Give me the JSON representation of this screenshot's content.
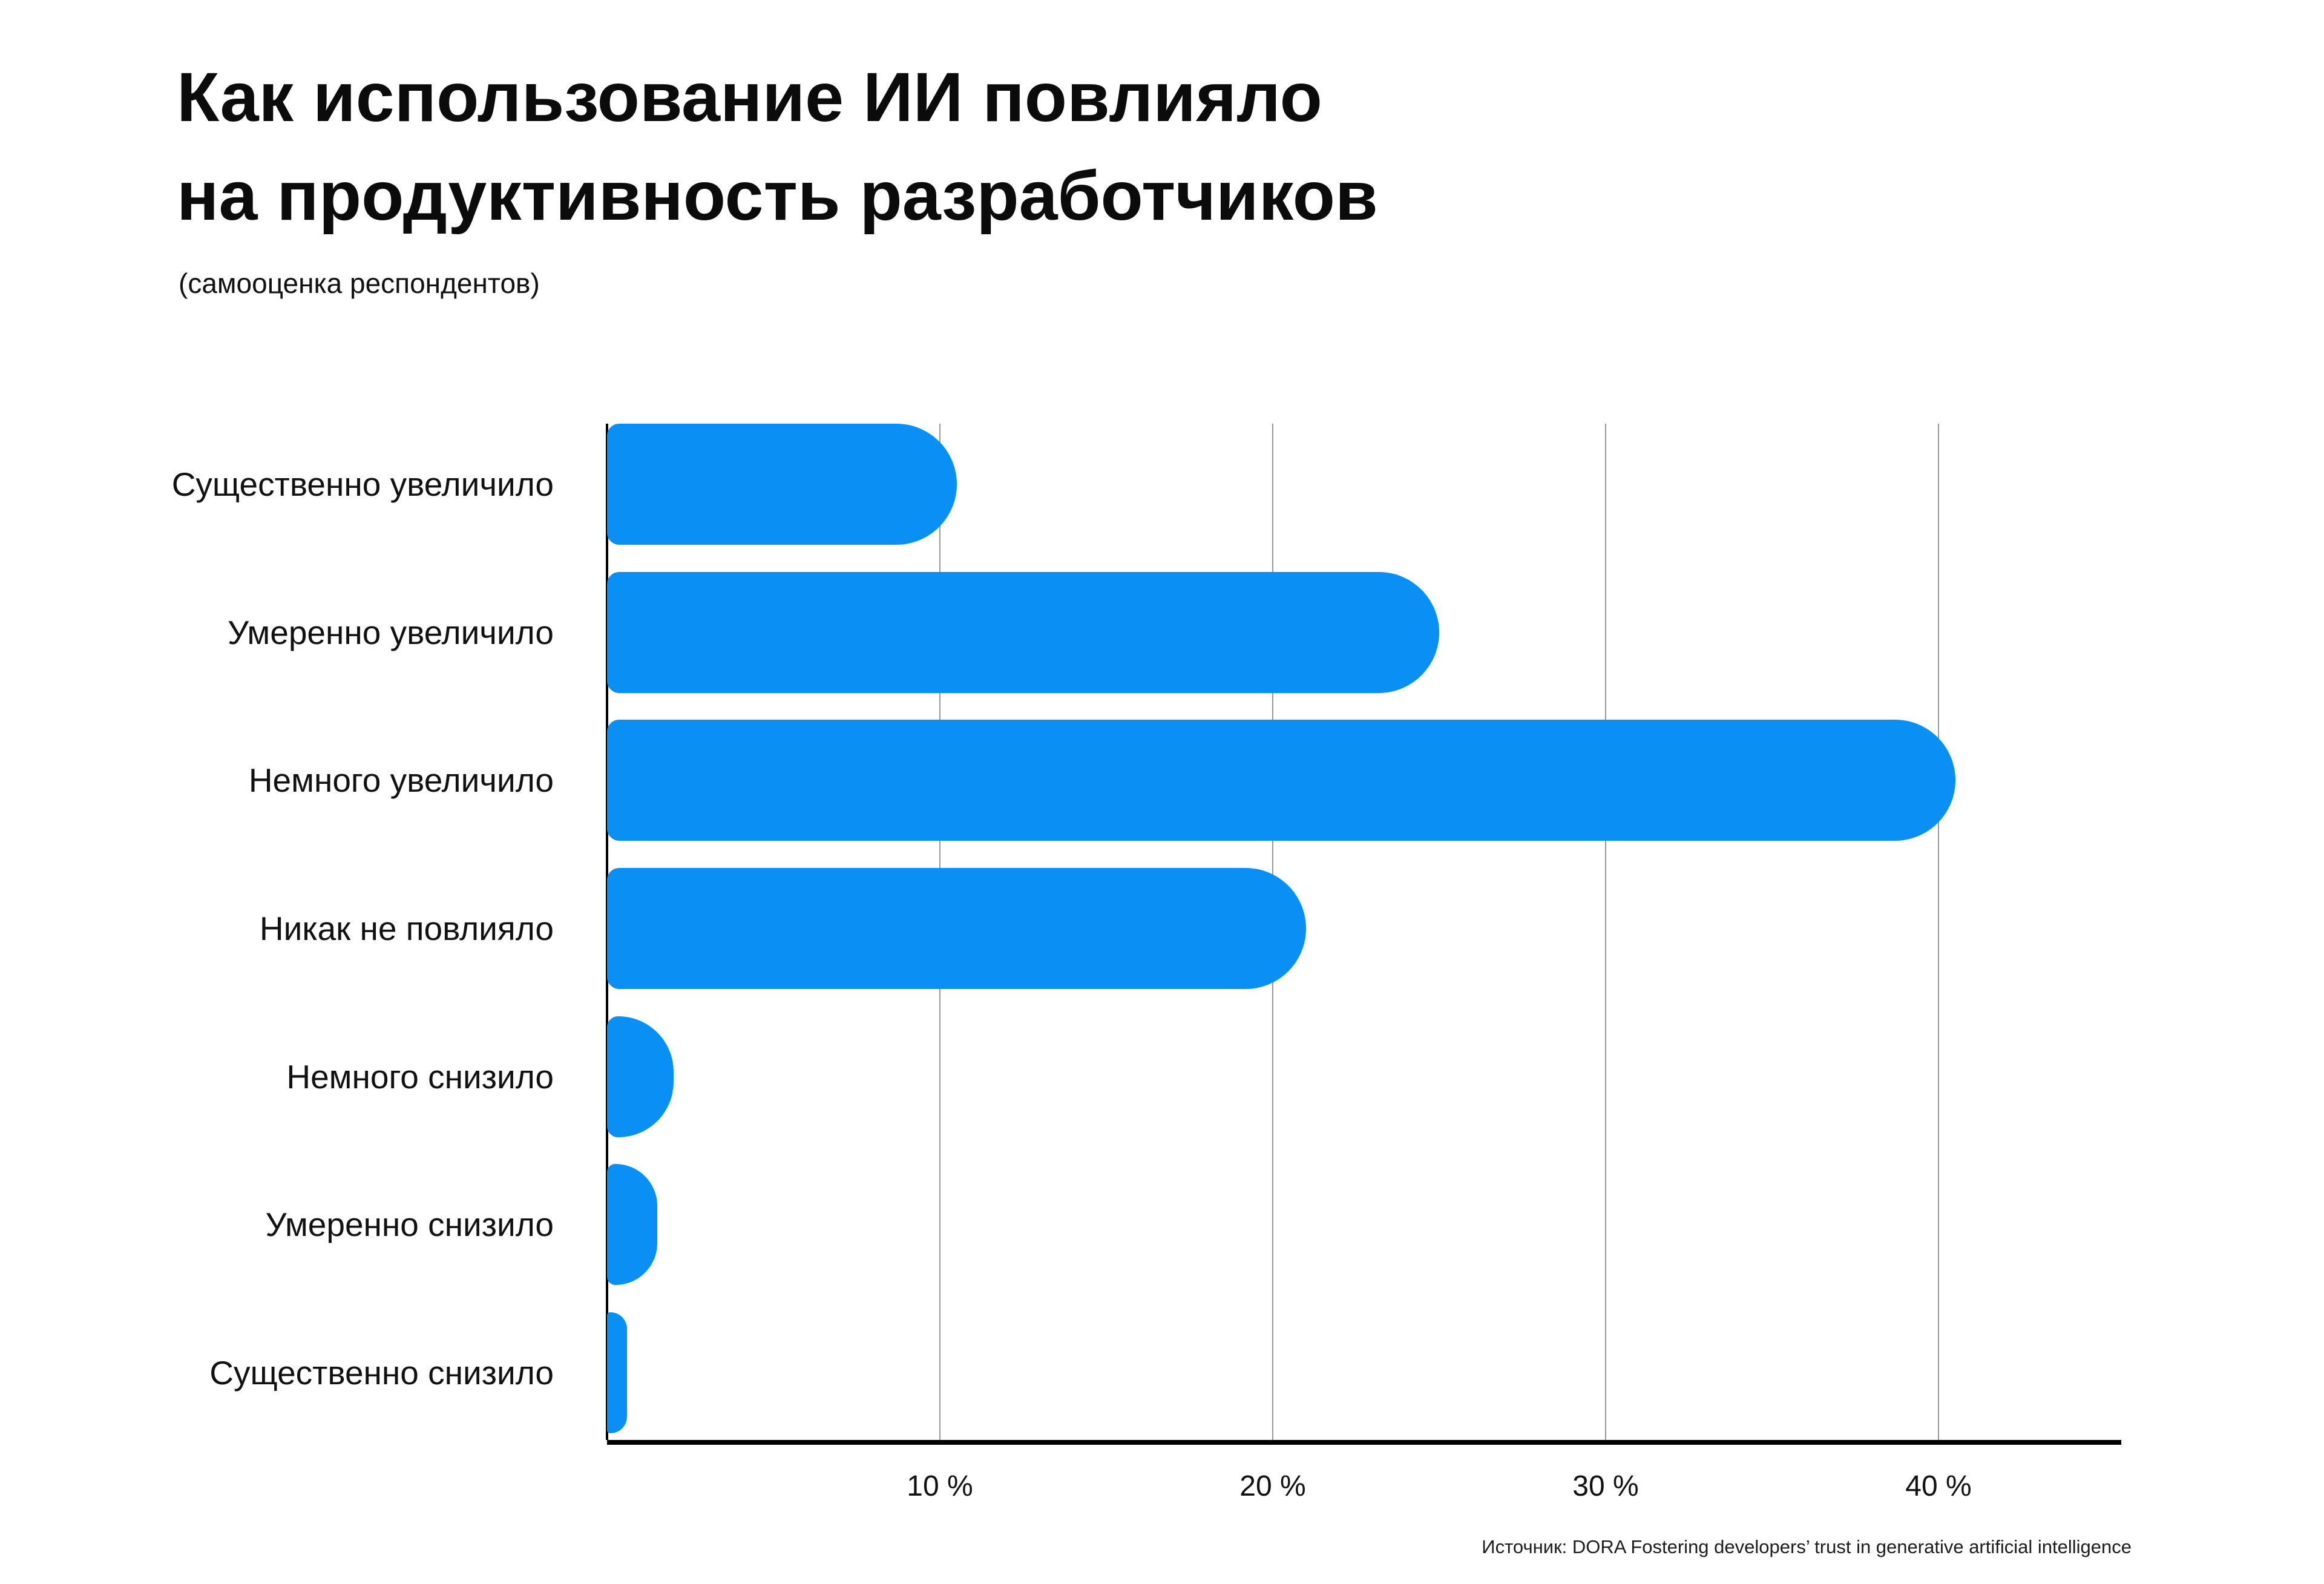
{
  "title": "Как использование ИИ повлияло\nна продуктивность разработчиков",
  "subtitle": "(самооценка респондентов)",
  "source": "Источник: DORA Fostering developers’ trust in generative artificial intelligence",
  "colors": {
    "bar": "#0a90f5",
    "gridline": "#777777",
    "axis": "#000000",
    "text": "#0b0b0b"
  },
  "chart_data": {
    "type": "bar",
    "orientation": "horizontal",
    "title": "Как использование ИИ повлияло на продуктивность разработчиков",
    "subtitle": "(самооценка респондентов)",
    "categories": [
      "Существенно увеличило",
      "Умеренно увеличило",
      "Немного увеличило",
      "Никак не повлияло",
      "Немного снизило",
      "Умеренно снизило",
      "Существенно снизило"
    ],
    "values": [
      10.5,
      25,
      40.5,
      21,
      2,
      1.5,
      0.6
    ],
    "unit": "%",
    "x_ticks": [
      {
        "label": "10 %",
        "value": 10
      },
      {
        "label": "20 %",
        "value": 20
      },
      {
        "label": "30 %",
        "value": 30
      },
      {
        "label": "40 %",
        "value": 40
      }
    ],
    "xlim": [
      0,
      45.5
    ],
    "grid": "vertical gridlines at major ticks",
    "legend": "none",
    "bar_color": "#0a90f5"
  }
}
